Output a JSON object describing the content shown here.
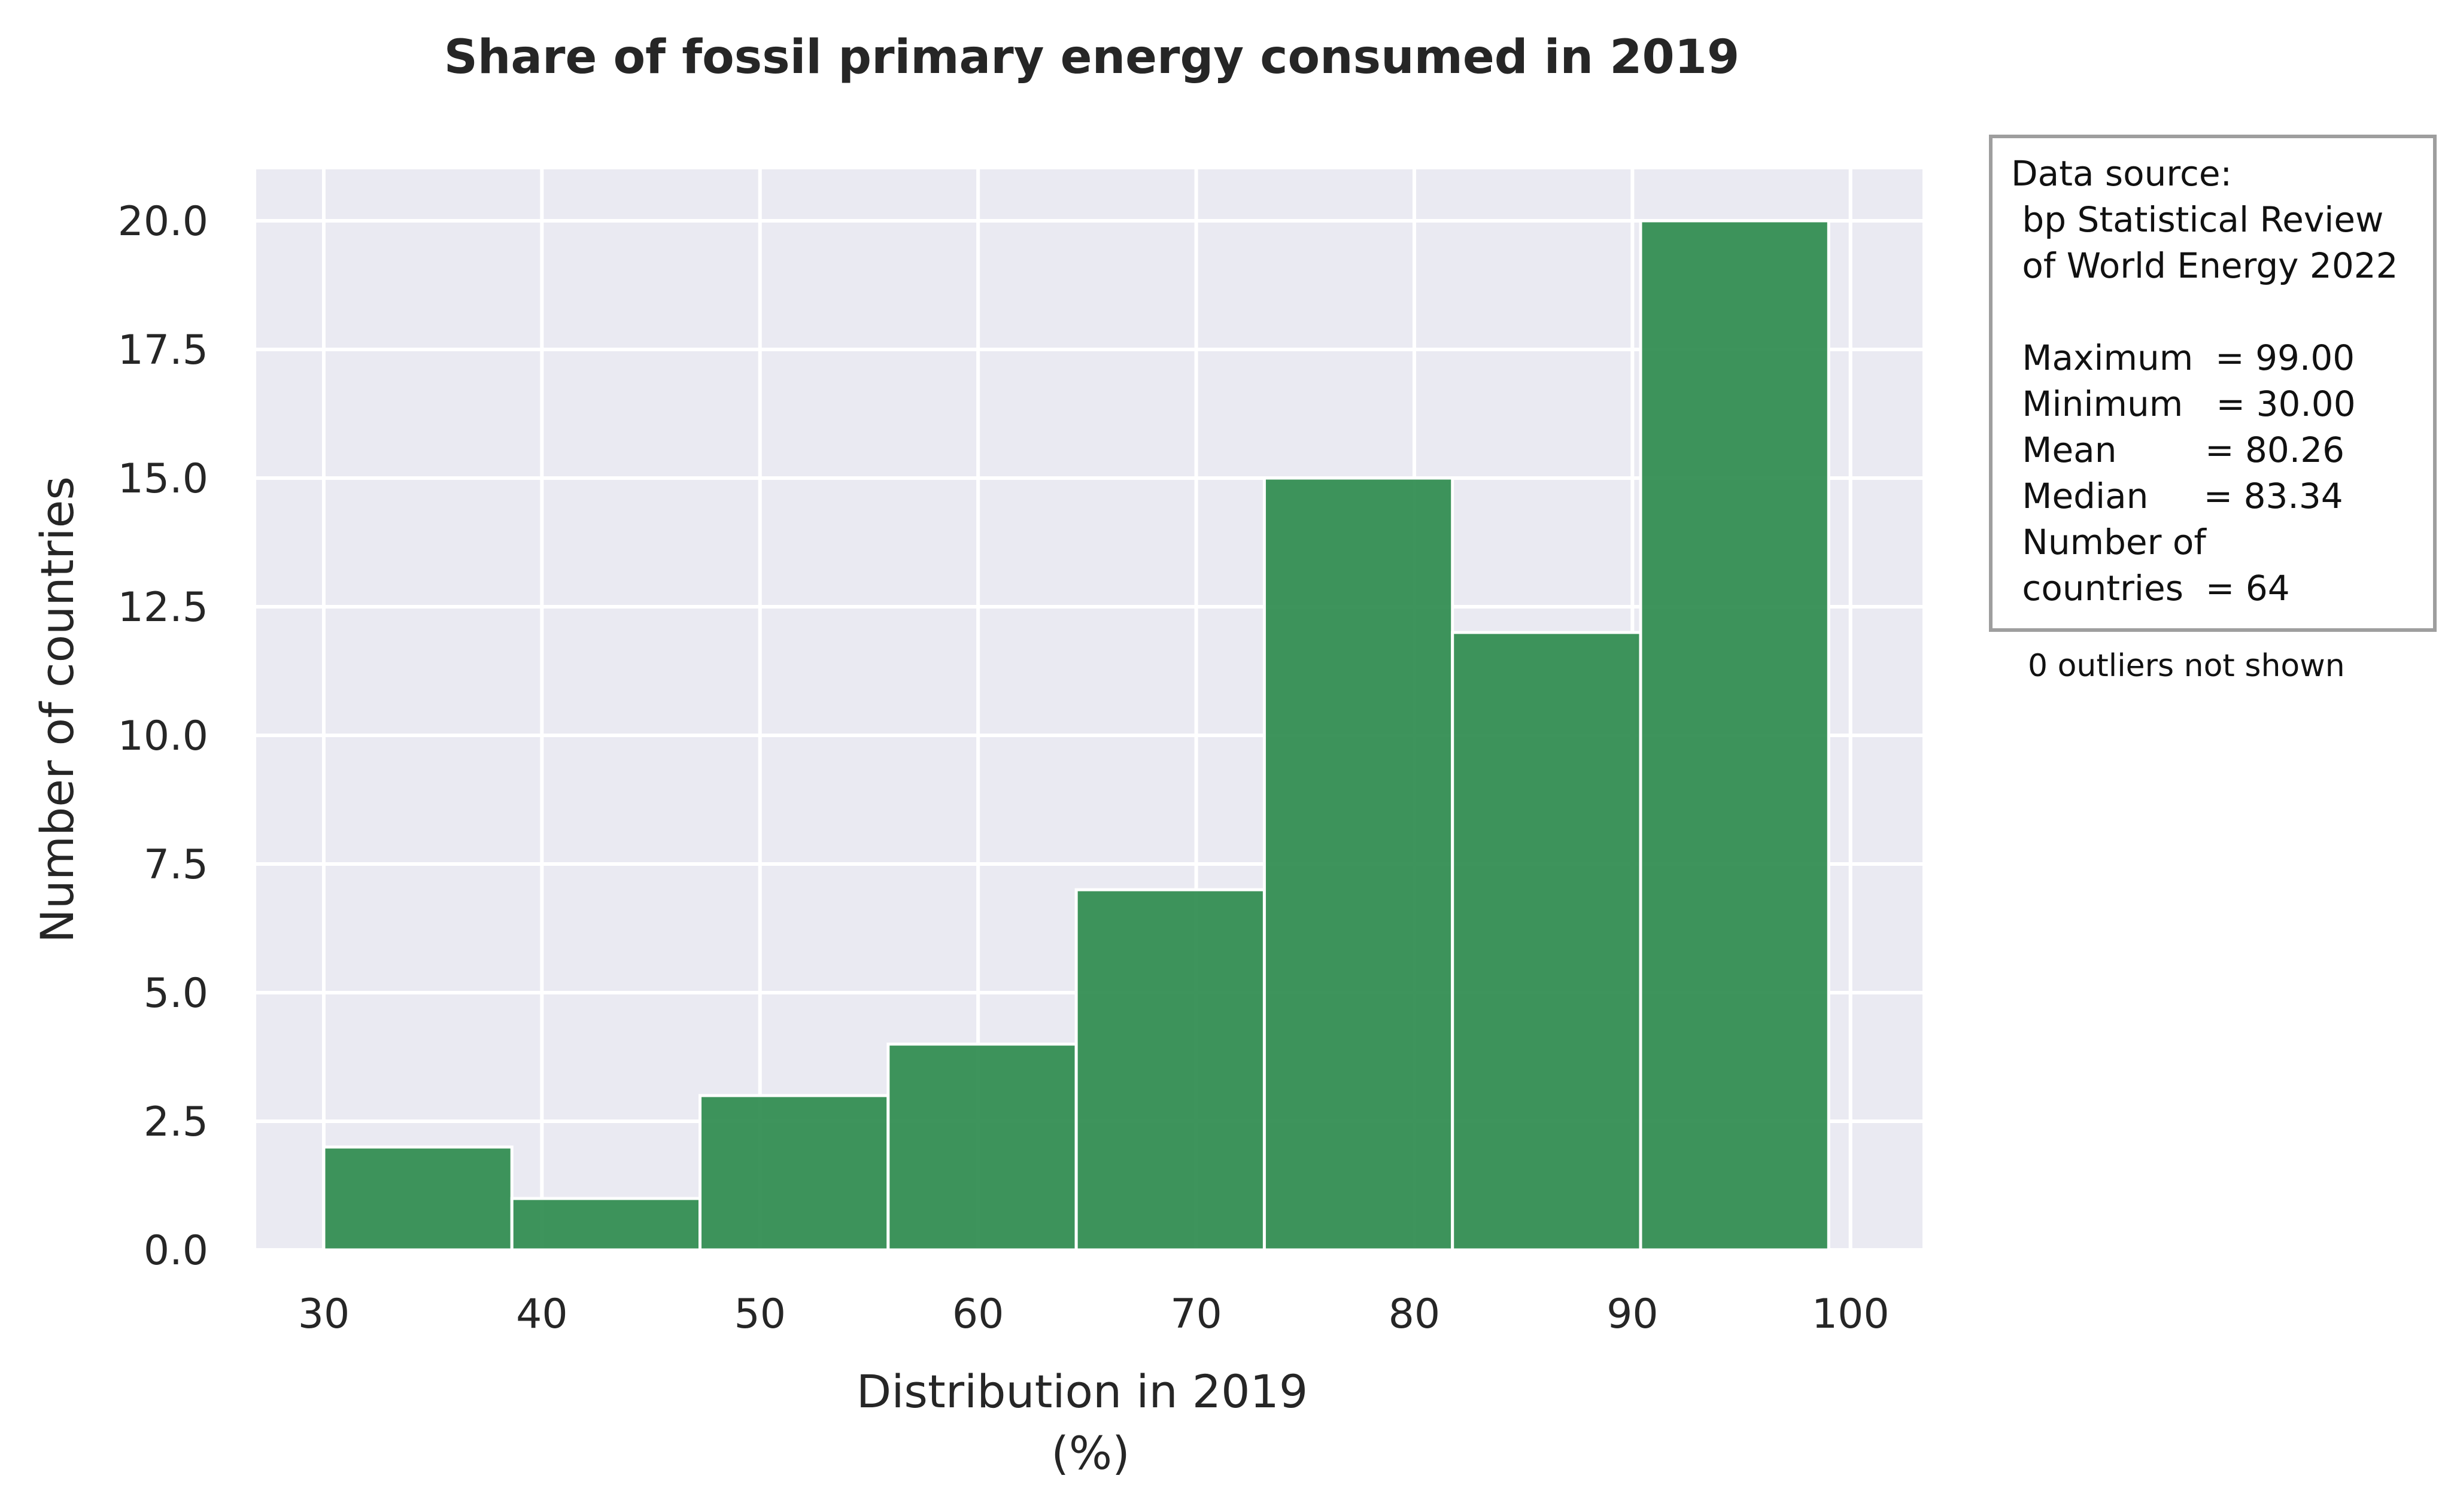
{
  "chart_data": {
    "type": "bar",
    "title": "Share of fossil primary energy consumed in 2019",
    "xlabel_line1": "Distribution in 2019",
    "xlabel_line2": "(%)",
    "ylabel": "Number of countries",
    "bins": [
      {
        "x0": 30.0,
        "x1": 38.625,
        "count": 2
      },
      {
        "x0": 38.625,
        "x1": 47.25,
        "count": 1
      },
      {
        "x0": 47.25,
        "x1": 55.875,
        "count": 3
      },
      {
        "x0": 55.875,
        "x1": 64.5,
        "count": 4
      },
      {
        "x0": 64.5,
        "x1": 73.125,
        "count": 7
      },
      {
        "x0": 73.125,
        "x1": 81.75,
        "count": 15
      },
      {
        "x0": 81.75,
        "x1": 90.375,
        "count": 12
      },
      {
        "x0": 90.375,
        "x1": 99.0,
        "count": 20
      }
    ],
    "xlim": [
      26.9,
      103.3
    ],
    "ylim": [
      0,
      21
    ],
    "xticks": [
      "30",
      "40",
      "50",
      "60",
      "70",
      "80",
      "90",
      "100"
    ],
    "yticks": [
      "0.0",
      "2.5",
      "5.0",
      "7.5",
      "10.0",
      "12.5",
      "15.0",
      "17.5",
      "20.0"
    ],
    "grid": true,
    "bar_color": "#2e8b4e",
    "background_color": "#eaeaf2"
  },
  "info_box": {
    "lines": [
      "Data source:",
      " bp Statistical Review",
      " of World Energy 2022",
      "",
      " Maximum  = 99.00",
      " Minimum   = 30.00",
      " Mean        = 80.26",
      " Median     = 83.34",
      " Number of",
      " countries  = 64"
    ],
    "note": "0 outliers not shown"
  }
}
